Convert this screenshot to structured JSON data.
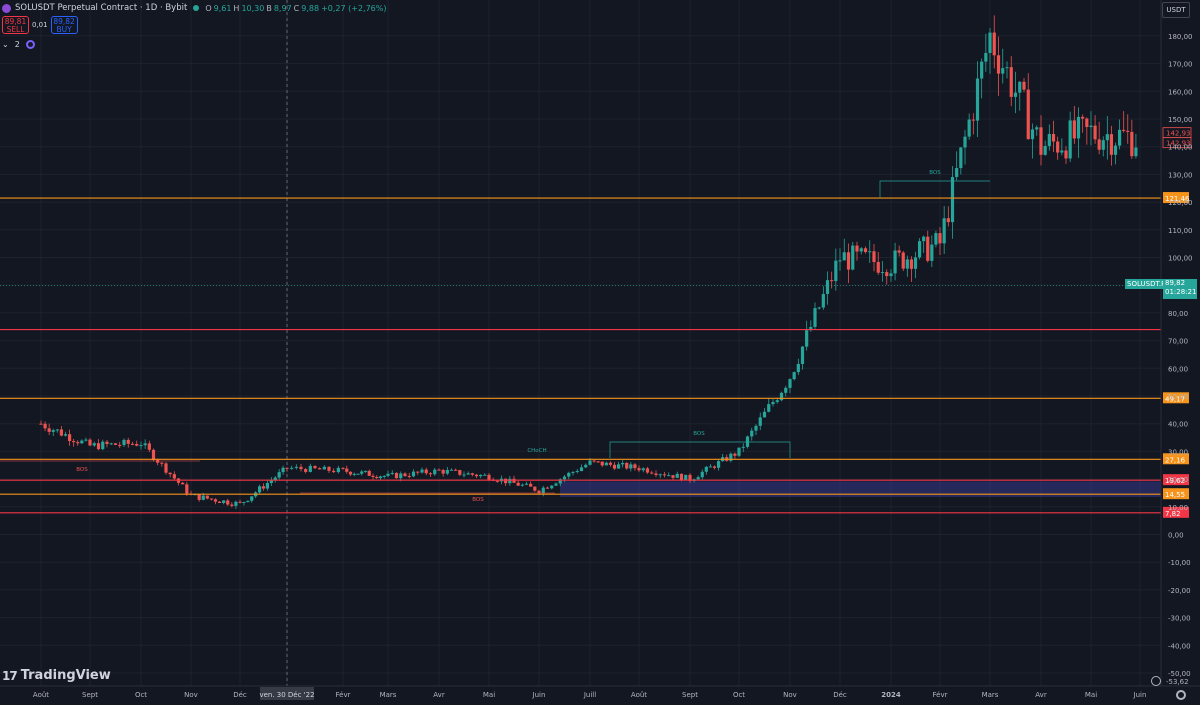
{
  "header": {
    "title": "SOLUSDT Perpetual Contract · 1D · Bybit",
    "ohlc": [
      {
        "k": "O",
        "v": "9,61"
      },
      {
        "k": "H",
        "v": "10,30"
      },
      {
        "k": "B",
        "v": "8,97"
      },
      {
        "k": "C",
        "v": "9,88"
      },
      {
        "k": "",
        "v": "+0,27 (+2,76%)"
      }
    ],
    "sell_price": "89,81",
    "sell_label": "SELL",
    "spread": "0,01",
    "buy_price": "89,82",
    "buy_label": "BUY",
    "indicator_count": "2"
  },
  "currency": "USDT",
  "brand": "TradingView",
  "crosshair_date": "ven. 30 Déc '22",
  "colors": {
    "bg": "#131722",
    "grid": "#1e222d",
    "up": "#26a69a",
    "down": "#ef5350",
    "orange": "#f7931a",
    "red_line": "#f23645",
    "pink": "#ef9a9a",
    "zone": "#3a3f9f"
  },
  "chart_data": {
    "type": "candlestick",
    "symbol": "SOLUSDT.P",
    "y_ticks": [
      180,
      170,
      160,
      150,
      140,
      130,
      120,
      110,
      100,
      90,
      80,
      70,
      60,
      50,
      40,
      30,
      20,
      10,
      0,
      -10,
      -20,
      -30,
      -40,
      -50
    ],
    "y_tick_labels": [
      "180,00",
      "170,00",
      "160,00",
      "150,00",
      "140,00",
      "130,00",
      "120,00",
      "110,00",
      "100,00",
      "90,00",
      "80,00",
      "70,00",
      "60,00",
      "50,00",
      "40,00",
      "30,00",
      "20,00",
      "10,00",
      "0,00",
      "-10,00",
      "-20,00",
      "-30,00",
      "-40,00",
      "-50,00"
    ],
    "ylim": [
      -56,
      192
    ],
    "x_labels": [
      "Août",
      "Sept",
      "Oct",
      "Nov",
      "Déc",
      "ven. 30 Déc '22",
      "Févr",
      "Mars",
      "Avr",
      "Mai",
      "Juin",
      "Juill",
      "Août",
      "Sept",
      "Oct",
      "Nov",
      "Déc",
      "2024",
      "Févr",
      "Mars",
      "Avr",
      "Mai",
      "Juin"
    ],
    "axis_min_label": "-53,62",
    "levels": [
      {
        "value": 121.46,
        "label": "121,46",
        "color": "#f7931a"
      },
      {
        "value": 74,
        "label": "",
        "color": "#f23645"
      },
      {
        "value": 49.17,
        "label": "49,17",
        "color": "#f7931a"
      },
      {
        "value": 27.16,
        "label": "27,16",
        "color": "#f7931a"
      },
      {
        "value": 19.62,
        "label": "19,62",
        "color": "#f23645"
      },
      {
        "value": 14.55,
        "label": "14,55",
        "color": "#f7931a"
      },
      {
        "value": 7.82,
        "label": "7,82",
        "color": "#f23645"
      }
    ],
    "last_price": {
      "value": 89.82,
      "label": "89,82",
      "countdown": "01:28:21"
    },
    "top_price_labels": [
      "142,93",
      "142,93"
    ],
    "annotations": [
      "BOS",
      "CHoCH",
      "BOS",
      "BOS",
      "BOS"
    ],
    "key_points": [
      {
        "date": "2022-08",
        "price": 40
      },
      {
        "date": "2022-09",
        "price": 32
      },
      {
        "date": "2022-10",
        "price": 33
      },
      {
        "date": "2022-11",
        "price": 14
      },
      {
        "date": "2022-12",
        "price": 11
      },
      {
        "date": "2023-01",
        "price": 24
      },
      {
        "date": "2023-02",
        "price": 23
      },
      {
        "date": "2023-03",
        "price": 21
      },
      {
        "date": "2023-04",
        "price": 23
      },
      {
        "date": "2023-05",
        "price": 21
      },
      {
        "date": "2023-06",
        "price": 16
      },
      {
        "date": "2023-07",
        "price": 26
      },
      {
        "date": "2023-08",
        "price": 24
      },
      {
        "date": "2023-09",
        "price": 20
      },
      {
        "date": "2023-10",
        "price": 30
      },
      {
        "date": "2023-11",
        "price": 57
      },
      {
        "date": "2023-12",
        "price": 100
      },
      {
        "date": "2024-01",
        "price": 98
      },
      {
        "date": "2024-02",
        "price": 105
      },
      {
        "date": "2024-03",
        "price": 180
      },
      {
        "date": "2024-04",
        "price": 140
      },
      {
        "date": "2024-05",
        "price": 145
      },
      {
        "date": "2024-06",
        "price": 143
      }
    ]
  }
}
